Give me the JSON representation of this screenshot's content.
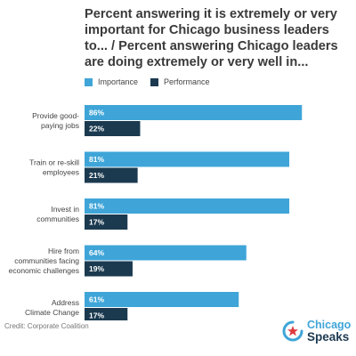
{
  "title": "Percent answering it is extremely or very important for Chicago business leaders to... / Percent answering Chicago leaders are doing extremely or very well in...",
  "legend": [
    {
      "label": "Importance",
      "color": "#3fa5d8"
    },
    {
      "label": "Performance",
      "color": "#1b3a50"
    }
  ],
  "credit": "Credit: Corporate Coalition",
  "logo": {
    "line1": "Chicago",
    "line2": "Speaks",
    "star_icon": "red-star-icon"
  },
  "chart_data": {
    "type": "bar",
    "orientation": "horizontal",
    "categories": [
      "Provide good-paying jobs",
      "Train or re-skill employees",
      "Invest in communities",
      "Hire from communities facing economic challenges",
      "Address Climate Change"
    ],
    "category_lines": [
      [
        "Provide good-",
        "paying jobs"
      ],
      [
        "Train or re-skill",
        "employees"
      ],
      [
        "Invest in",
        "communities"
      ],
      [
        "Hire from",
        "communities facing",
        "economic challenges"
      ],
      [
        "Address",
        "Climate Change"
      ]
    ],
    "series": [
      {
        "name": "Importance",
        "values": [
          86,
          81,
          81,
          64,
          61
        ],
        "color": "#3fa5d8"
      },
      {
        "name": "Performance",
        "values": [
          22,
          21,
          17,
          19,
          17
        ],
        "color": "#1b3a50"
      }
    ],
    "value_suffix": "%",
    "xlim": [
      0,
      100
    ],
    "grid": false,
    "legend_position": "top"
  }
}
